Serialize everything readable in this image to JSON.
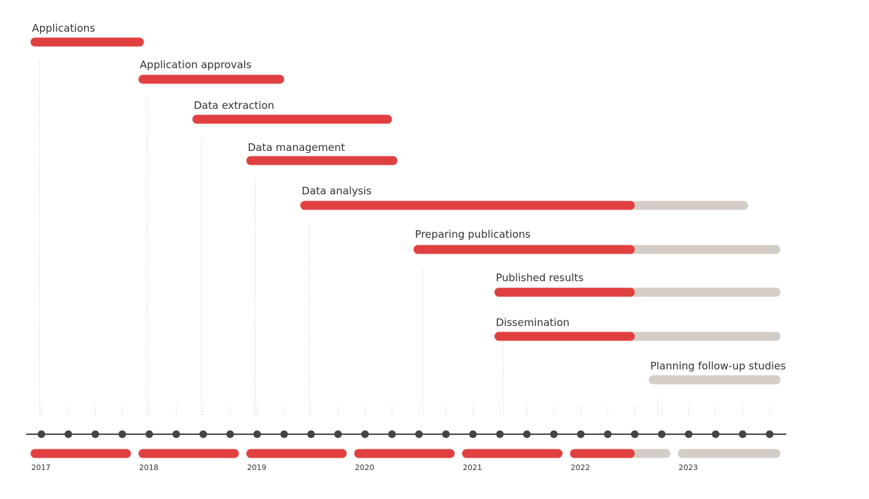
{
  "chart_data": {
    "type": "timeline",
    "title": "",
    "colors": {
      "done": "#e04040",
      "remaining": "#d3cdc5",
      "axis": "#444444",
      "text": "#333333",
      "guide": "#cccccc"
    },
    "time_range": [
      2017.0,
      2024.0
    ],
    "quarter_ticks": 28,
    "progress_marker": 2022.5,
    "tasks": [
      {
        "label": "Applications",
        "start": 2016.9,
        "end": 2017.95,
        "progress_end": 2017.95
      },
      {
        "label": "Application approvals",
        "start": 2017.9,
        "end": 2019.25,
        "progress_end": 2019.25
      },
      {
        "label": "Data extraction",
        "start": 2018.4,
        "end": 2020.25,
        "progress_end": 2020.25
      },
      {
        "label": "Data management",
        "start": 2018.9,
        "end": 2020.3,
        "progress_end": 2020.3
      },
      {
        "label": "Data analysis",
        "start": 2019.4,
        "end": 2023.55,
        "progress_end": 2022.5
      },
      {
        "label": "Preparing publications",
        "start": 2020.45,
        "end": 2023.85,
        "progress_end": 2022.5
      },
      {
        "label": "Published results",
        "start": 2021.2,
        "end": 2023.85,
        "progress_end": 2022.5
      },
      {
        "label": "Dissemination",
        "start": 2021.2,
        "end": 2023.85,
        "progress_end": 2022.5
      },
      {
        "label": "Planning follow-up studies",
        "start": 2022.63,
        "end": 2023.85,
        "progress_end": 2022.63
      }
    ],
    "years": [
      {
        "label": "2017",
        "start": 2016.9,
        "end": 2017.83,
        "progress_end": 2017.83
      },
      {
        "label": "2018",
        "start": 2017.9,
        "end": 2018.83,
        "progress_end": 2018.83
      },
      {
        "label": "2019",
        "start": 2018.9,
        "end": 2019.83,
        "progress_end": 2019.83
      },
      {
        "label": "2020",
        "start": 2019.9,
        "end": 2020.83,
        "progress_end": 2020.83
      },
      {
        "label": "2021",
        "start": 2020.9,
        "end": 2021.83,
        "progress_end": 2021.83
      },
      {
        "label": "2022",
        "start": 2021.9,
        "end": 2022.83,
        "progress_end": 2022.5
      },
      {
        "label": "2023",
        "start": 2022.9,
        "end": 2023.85,
        "progress_end": 2022.9
      }
    ]
  }
}
